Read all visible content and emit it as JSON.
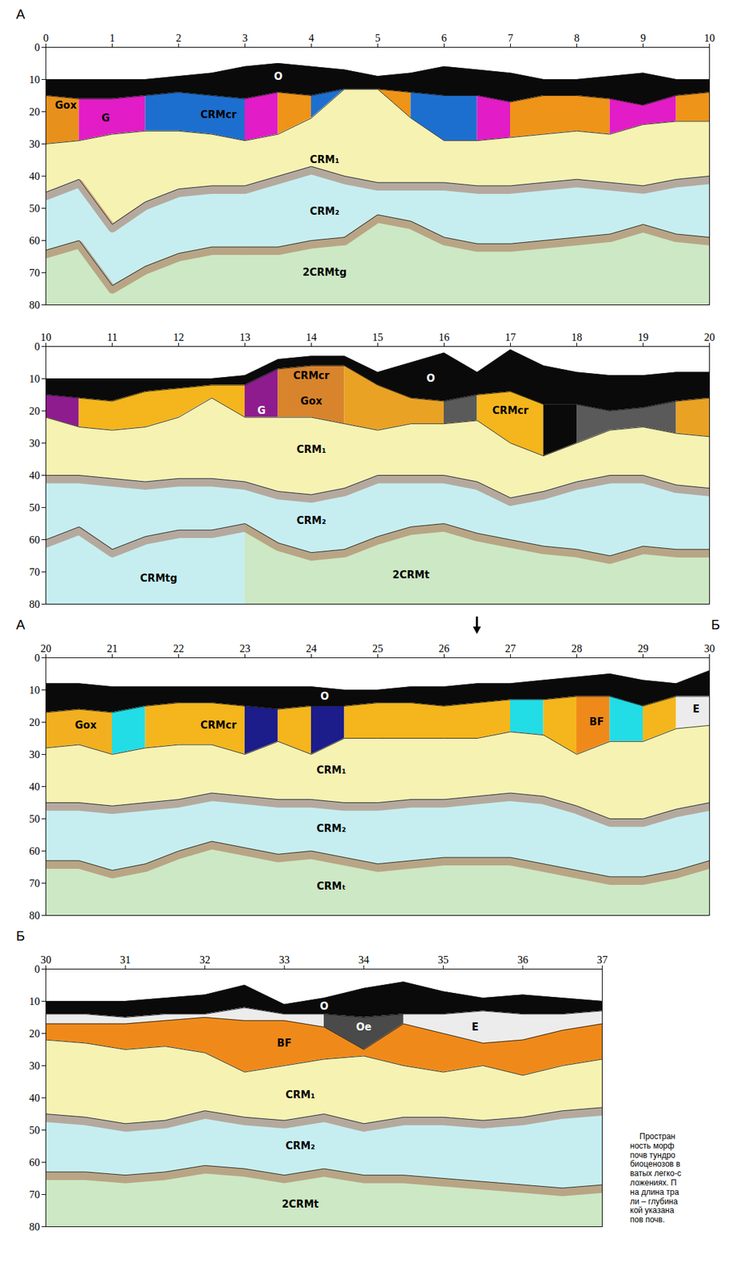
{
  "chart_data": [
    {
      "type": "area",
      "letter_left": "А",
      "xlim": [
        0,
        10
      ],
      "xticks": [
        0,
        1,
        2,
        3,
        4,
        5,
        6,
        7,
        8,
        9,
        10
      ],
      "ylim": [
        0,
        80
      ],
      "yticks": [
        0,
        10,
        20,
        30,
        40,
        50,
        60,
        70,
        80
      ],
      "x": [
        0,
        0.5,
        1,
        1.5,
        2,
        2.5,
        3,
        3.5,
        4,
        4.5,
        5,
        5.5,
        6,
        6.5,
        7,
        7.5,
        8,
        8.5,
        9,
        9.5,
        10
      ],
      "boundaries": [
        [
          10,
          10,
          10,
          10,
          9,
          8,
          6,
          5,
          6,
          7,
          9,
          8,
          6,
          7,
          8,
          10,
          10,
          9,
          8,
          10,
          10
        ],
        [
          15,
          16,
          16,
          15,
          14,
          15,
          16,
          14,
          15,
          13,
          13,
          14,
          15,
          15,
          17,
          15,
          15,
          16,
          18,
          15,
          14
        ],
        [
          30,
          29,
          27,
          26,
          26,
          27,
          29,
          27,
          22,
          13,
          13,
          22,
          29,
          29,
          28,
          27,
          26,
          27,
          24,
          23,
          23
        ],
        [
          45,
          41,
          55,
          48,
          44,
          43,
          43,
          40,
          37,
          40,
          42,
          42,
          42,
          43,
          43,
          42,
          41,
          42,
          43,
          41,
          40
        ],
        [
          63,
          60,
          74,
          68,
          64,
          62,
          62,
          62,
          60,
          59,
          52,
          54,
          59,
          61,
          61,
          60,
          59,
          58,
          55,
          58,
          59
        ]
      ],
      "layers": [
        {
          "color": "#0a0a0a",
          "top": 0,
          "bottom": 1
        },
        {
          "color": "#e8901c",
          "top": 1,
          "bottom": 2,
          "from": 0,
          "to": 0.5
        },
        {
          "color": "#e21cc6",
          "top": 1,
          "bottom": 2,
          "from": 0.5,
          "to": 1.5
        },
        {
          "color": "#1d6fcf",
          "top": 1,
          "bottom": 2,
          "from": 1.5,
          "to": 3
        },
        {
          "color": "#e21cc6",
          "top": 1,
          "bottom": 2,
          "from": 3,
          "to": 3.5
        },
        {
          "color": "#ee9418",
          "top": 1,
          "bottom": 2,
          "from": 3.5,
          "to": 4
        },
        {
          "color": "#1d6fcf",
          "top": 1,
          "bottom": 2,
          "from": 4,
          "to": 4.5
        },
        {
          "color": "#ee9418",
          "top": 1,
          "bottom": 2,
          "from": 5,
          "to": 5.5
        },
        {
          "color": "#1d6fcf",
          "top": 1,
          "bottom": 2,
          "from": 5.5,
          "to": 6.5
        },
        {
          "color": "#e21cc6",
          "top": 1,
          "bottom": 2,
          "from": 6.5,
          "to": 7
        },
        {
          "color": "#ee9418",
          "top": 1,
          "bottom": 2,
          "from": 7,
          "to": 8.5
        },
        {
          "color": "#e21cc6",
          "top": 1,
          "bottom": 2,
          "from": 8.5,
          "to": 9.5
        },
        {
          "color": "#ee9418",
          "top": 1,
          "bottom": 2,
          "from": 9.5,
          "to": 10
        },
        {
          "color": "#f6f2b2",
          "top": 2,
          "bottom": 3
        },
        {
          "color": "#c6eef0",
          "top": 3,
          "bottom": 4
        },
        {
          "color": "#cde8c4",
          "top": 4,
          "bottom": null
        }
      ],
      "labels": [
        {
          "text": "O",
          "x": 3.5,
          "y": 9,
          "color": "#ffffff"
        },
        {
          "text": "Gox",
          "x": 0.3,
          "y": 18,
          "color": "#000000"
        },
        {
          "text": "G",
          "x": 0.9,
          "y": 22,
          "color": "#000000"
        },
        {
          "text": "CRMcr",
          "x": 2.6,
          "y": 21,
          "color": "#000000"
        },
        {
          "text": "CRM₁",
          "x": 4.2,
          "y": 35,
          "color": "#000000"
        },
        {
          "text": "CRM₂",
          "x": 4.2,
          "y": 51,
          "color": "#000000"
        },
        {
          "text": "2CRMtg",
          "x": 4.2,
          "y": 70,
          "color": "#000000"
        }
      ]
    },
    {
      "type": "area",
      "xlim": [
        10,
        20
      ],
      "xticks": [
        10,
        11,
        12,
        13,
        14,
        15,
        16,
        17,
        18,
        19,
        20
      ],
      "ylim": [
        0,
        80
      ],
      "yticks": [
        0,
        10,
        20,
        30,
        40,
        50,
        60,
        70,
        80
      ],
      "x": [
        10,
        10.5,
        11,
        11.5,
        12,
        12.5,
        13,
        13.5,
        14,
        14.5,
        15,
        15.5,
        16,
        16.5,
        17,
        17.5,
        18,
        18.5,
        19,
        19.5,
        20
      ],
      "boundaries": [
        [
          10,
          10,
          10,
          10,
          10,
          10,
          9,
          4,
          3,
          3,
          8,
          5,
          2,
          8,
          1,
          6,
          8,
          9,
          9,
          8,
          8
        ],
        [
          15,
          16,
          17,
          14,
          13,
          12,
          12,
          7,
          6,
          6,
          12,
          16,
          17,
          15,
          14,
          18,
          18,
          20,
          19,
          17,
          16
        ],
        [
          22,
          25,
          26,
          25,
          22,
          16,
          22,
          22,
          22,
          24,
          26,
          24,
          24,
          23,
          30,
          34,
          30,
          26,
          25,
          27,
          28
        ],
        [
          40,
          40,
          41,
          42,
          41,
          41,
          42,
          45,
          46,
          44,
          40,
          40,
          40,
          42,
          47,
          45,
          42,
          40,
          40,
          43,
          44
        ],
        [
          60,
          56,
          63,
          59,
          57,
          57,
          55,
          61,
          64,
          63,
          59,
          56,
          55,
          58,
          60,
          62,
          63,
          65,
          62,
          63,
          63
        ]
      ],
      "layers": [
        {
          "color": "#0a0a0a",
          "top": 0,
          "bottom": 1
        },
        {
          "color": "#8e1c8e",
          "top": 1,
          "bottom": 2,
          "from": 10,
          "to": 10.5
        },
        {
          "color": "#f4b61c",
          "top": 1,
          "bottom": 2,
          "from": 10.5,
          "to": 13
        },
        {
          "color": "#8e1c8e",
          "top": 1,
          "bottom": 2,
          "from": 13,
          "to": 13.5
        },
        {
          "color": "#d8842c",
          "top": 1,
          "bottom": 2,
          "from": 13.5,
          "to": 14.5
        },
        {
          "color": "#e9a224",
          "top": 1,
          "bottom": 2,
          "from": 14.5,
          "to": 16
        },
        {
          "color": "#5a5a5a",
          "top": 1,
          "bottom": 2,
          "from": 16,
          "to": 16.5
        },
        {
          "color": "#f4b61c",
          "top": 1,
          "bottom": 2,
          "from": 16.5,
          "to": 17.5
        },
        {
          "color": "#0a0a0a",
          "top": 1,
          "bottom": 2,
          "from": 17.5,
          "to": 18
        },
        {
          "color": "#5a5a5a",
          "top": 1,
          "bottom": 2,
          "from": 18,
          "to": 19.5
        },
        {
          "color": "#e9a224",
          "top": 1,
          "bottom": 2,
          "from": 19.5,
          "to": 20
        },
        {
          "color": "#f6f2b2",
          "top": 2,
          "bottom": 3
        },
        {
          "color": "#c6eef0",
          "top": 3,
          "bottom": 4
        },
        {
          "color": "#c6eef0",
          "top": 4,
          "bottom": null,
          "from": 10,
          "to": 13
        },
        {
          "color": "#cde8c4",
          "top": 4,
          "bottom": null,
          "from": 13,
          "to": 20
        }
      ],
      "labels": [
        {
          "text": "O",
          "x": 15.8,
          "y": 10,
          "color": "#ffffff"
        },
        {
          "text": "CRMcr",
          "x": 14,
          "y": 9,
          "color": "#000000"
        },
        {
          "text": "Gox",
          "x": 14,
          "y": 17,
          "color": "#000000"
        },
        {
          "text": "G",
          "x": 13.25,
          "y": 20,
          "color": "#ffffff"
        },
        {
          "text": "CRMcr",
          "x": 17,
          "y": 20,
          "color": "#000000"
        },
        {
          "text": "CRM₁",
          "x": 14,
          "y": 32,
          "color": "#000000"
        },
        {
          "text": "CRM₂",
          "x": 14,
          "y": 54,
          "color": "#000000"
        },
        {
          "text": "CRMtg",
          "x": 11.7,
          "y": 72,
          "color": "#000000"
        },
        {
          "text": "2CRMt",
          "x": 15.5,
          "y": 71,
          "color": "#000000"
        }
      ]
    },
    {
      "type": "area",
      "letter_left": "А",
      "letter_right": "Б",
      "arrow_x": 26.5,
      "xlim": [
        20,
        30
      ],
      "xticks": [
        20,
        21,
        22,
        23,
        24,
        25,
        26,
        27,
        28,
        29,
        30
      ],
      "ylim": [
        0,
        80
      ],
      "yticks": [
        0,
        10,
        20,
        30,
        40,
        50,
        60,
        70,
        80
      ],
      "x": [
        20,
        20.5,
        21,
        21.5,
        22,
        22.5,
        23,
        23.5,
        24,
        24.5,
        25,
        25.5,
        26,
        26.5,
        27,
        27.5,
        28,
        28.5,
        29,
        29.5,
        30
      ],
      "boundaries": [
        [
          8,
          8,
          9,
          9,
          9,
          9,
          9,
          9,
          9,
          10,
          10,
          9,
          9,
          8,
          8,
          7,
          6,
          5,
          7,
          8,
          4
        ],
        [
          17,
          16,
          17,
          15,
          14,
          14,
          15,
          16,
          15,
          15,
          14,
          14,
          15,
          14,
          13,
          13,
          12,
          12,
          15,
          12,
          12
        ],
        [
          28,
          27,
          30,
          28,
          27,
          27,
          30,
          26,
          30,
          25,
          25,
          25,
          25,
          25,
          23,
          24,
          30,
          26,
          26,
          22,
          21
        ],
        [
          45,
          45,
          46,
          45,
          44,
          42,
          43,
          44,
          44,
          45,
          45,
          44,
          44,
          43,
          42,
          43,
          46,
          50,
          50,
          47,
          45
        ],
        [
          63,
          63,
          66,
          64,
          60,
          57,
          59,
          61,
          60,
          62,
          64,
          63,
          62,
          62,
          62,
          64,
          66,
          68,
          68,
          66,
          63
        ]
      ],
      "layers": [
        {
          "color": "#0a0a0a",
          "top": 0,
          "bottom": 1
        },
        {
          "color": "#f2b020",
          "top": 1,
          "bottom": 2,
          "from": 20,
          "to": 21
        },
        {
          "color": "#22dde6",
          "top": 1,
          "bottom": 2,
          "from": 21,
          "to": 21.5
        },
        {
          "color": "#f4b61c",
          "top": 1,
          "bottom": 2,
          "from": 21.5,
          "to": 23
        },
        {
          "color": "#1c1c8a",
          "top": 1,
          "bottom": 2,
          "from": 23,
          "to": 23.5
        },
        {
          "color": "#f4b61c",
          "top": 1,
          "bottom": 2,
          "from": 23.5,
          "to": 24
        },
        {
          "color": "#1c1c8a",
          "top": 1,
          "bottom": 2,
          "from": 24,
          "to": 24.5
        },
        {
          "color": "#f4b61c",
          "top": 1,
          "bottom": 2,
          "from": 24.5,
          "to": 27
        },
        {
          "color": "#22dde6",
          "top": 1,
          "bottom": 2,
          "from": 27,
          "to": 27.5
        },
        {
          "color": "#f4b61c",
          "top": 1,
          "bottom": 2,
          "from": 27.5,
          "to": 28
        },
        {
          "color": "#ef8a1a",
          "top": 1,
          "bottom": 2,
          "from": 28,
          "to": 28.5
        },
        {
          "color": "#22dde6",
          "top": 1,
          "bottom": 2,
          "from": 28.5,
          "to": 29
        },
        {
          "color": "#f4b61c",
          "top": 1,
          "bottom": 2,
          "from": 29,
          "to": 29.5
        },
        {
          "color": "#ececec",
          "top": 1,
          "bottom": 2,
          "from": 29.5,
          "to": 30
        },
        {
          "color": "#f6f2b2",
          "top": 2,
          "bottom": 3
        },
        {
          "color": "#c6eef0",
          "top": 3,
          "bottom": 4
        },
        {
          "color": "#cde8c4",
          "top": 4,
          "bottom": null
        }
      ],
      "labels": [
        {
          "text": "O",
          "x": 24.2,
          "y": 12,
          "color": "#ffffff"
        },
        {
          "text": "Gox",
          "x": 20.6,
          "y": 21,
          "color": "#000000"
        },
        {
          "text": "CRMcr",
          "x": 22.6,
          "y": 21,
          "color": "#000000"
        },
        {
          "text": "BF",
          "x": 28.3,
          "y": 20,
          "color": "#000000"
        },
        {
          "text": "E",
          "x": 29.8,
          "y": 16,
          "color": "#000000"
        },
        {
          "text": "CRM₁",
          "x": 24.3,
          "y": 35,
          "color": "#000000"
        },
        {
          "text": "CRM₂",
          "x": 24.3,
          "y": 53,
          "color": "#000000"
        },
        {
          "text": "CRMₜ",
          "x": 24.3,
          "y": 71,
          "color": "#000000"
        }
      ]
    },
    {
      "type": "area",
      "letter_left": "Б",
      "xlim": [
        30,
        37
      ],
      "xticks": [
        30,
        31,
        32,
        33,
        34,
        35,
        36,
        37
      ],
      "ylim": [
        0,
        80
      ],
      "yticks": [
        0,
        10,
        20,
        30,
        40,
        50,
        60,
        70,
        80
      ],
      "x": [
        30,
        30.5,
        31,
        31.5,
        32,
        32.5,
        33,
        33.5,
        34,
        34.5,
        35,
        35.5,
        36,
        36.5,
        37
      ],
      "boundaries": [
        [
          10,
          10,
          10,
          9,
          8,
          5,
          11,
          9,
          6,
          4,
          7,
          9,
          8,
          9,
          10
        ],
        [
          14,
          14,
          15,
          14,
          14,
          12,
          14,
          14,
          15,
          14,
          14,
          13,
          14,
          14,
          13
        ],
        [
          17,
          17,
          17,
          16,
          15,
          16,
          16,
          18,
          25,
          17,
          20,
          23,
          22,
          19,
          17
        ],
        [
          22,
          23,
          25,
          24,
          26,
          32,
          30,
          28,
          27,
          30,
          32,
          30,
          33,
          30,
          28
        ],
        [
          45,
          46,
          48,
          47,
          44,
          46,
          47,
          45,
          48,
          46,
          46,
          47,
          46,
          44,
          43
        ],
        [
          63,
          63,
          64,
          63,
          61,
          62,
          64,
          62,
          64,
          64,
          65,
          66,
          67,
          68,
          67
        ]
      ],
      "layers": [
        {
          "color": "#0a0a0a",
          "top": 0,
          "bottom": 1
        },
        {
          "color": "#ececec",
          "top": 1,
          "bottom": 2
        },
        {
          "color": "#ef8a1a",
          "top": 2,
          "bottom": 3
        },
        {
          "color": "#4a4a4a",
          "top": 1,
          "bottom": 2,
          "from": 33.5,
          "to": 34.5
        },
        {
          "color": "#f6f2b2",
          "top": 3,
          "bottom": 4
        },
        {
          "color": "#c6eef0",
          "top": 4,
          "bottom": 5
        },
        {
          "color": "#cde8c4",
          "top": 5,
          "bottom": null
        }
      ],
      "labels": [
        {
          "text": "O",
          "x": 33.5,
          "y": 11.5,
          "color": "#ffffff"
        },
        {
          "text": "Oe",
          "x": 34,
          "y": 18,
          "color": "#ffffff"
        },
        {
          "text": "E",
          "x": 35.4,
          "y": 18,
          "color": "#000000"
        },
        {
          "text": "BF",
          "x": 33,
          "y": 23,
          "color": "#000000"
        },
        {
          "text": "CRM₁",
          "x": 33.2,
          "y": 39,
          "color": "#000000"
        },
        {
          "text": "CRM₂",
          "x": 33.2,
          "y": 55,
          "color": "#000000"
        },
        {
          "text": "2CRMt",
          "x": 33.2,
          "y": 73,
          "color": "#000000"
        }
      ]
    }
  ],
  "caption": [
    "Простран",
    "ность морф",
    "почв тундро",
    "биоценозов в",
    "ватых легко-с",
    "ложениях. П",
    "на длина тра",
    "ли – глубина",
    "кой указана",
    "пов почв."
  ]
}
